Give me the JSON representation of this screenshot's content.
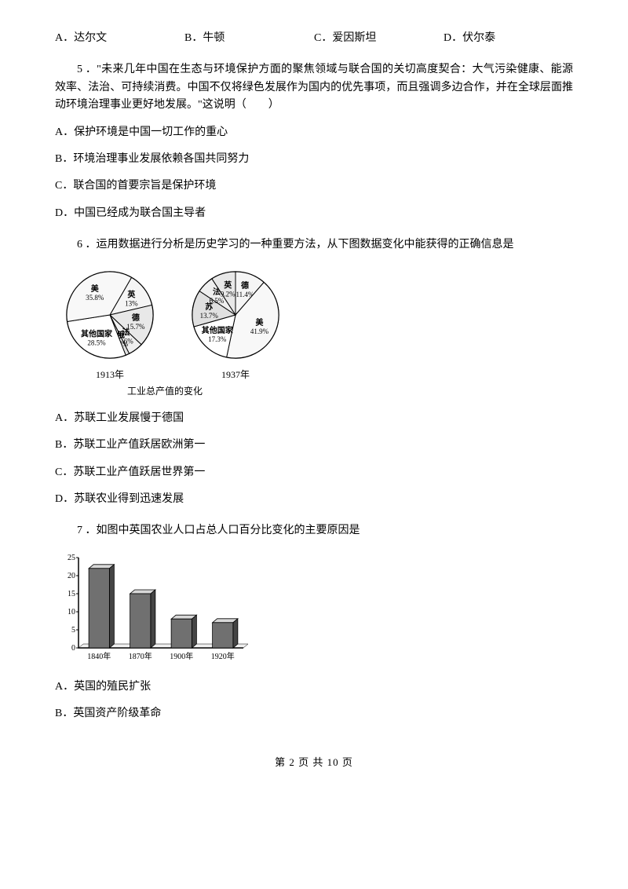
{
  "q4": {
    "options": {
      "A": "A．达尔文",
      "B": "B．牛顿",
      "C": "C．爱因斯坦",
      "D": "D．伏尔泰"
    }
  },
  "q5": {
    "text": "5 ．\"未来几年中国在生态与环境保护方面的聚焦领域与联合国的关切高度契合：大气污染健康、能源效率、法治、可持续消费。中国不仅将绿色发展作为国内的优先事项，而且强调多边合作，并在全球层面推动环境治理事业更好地发展。\"这说明（　　）",
    "A": "A．保护环境是中国一切工作的重心",
    "B": "B．环境治理事业发展依赖各国共同努力",
    "C": "C．联合国的首要宗旨是保护环境",
    "D": "D．中国已经成为联合国主导者"
  },
  "q6": {
    "text": "6 ．运用数据进行分析是历史学习的一种重要方法，从下图数据变化中能获得的正确信息是",
    "chart": {
      "title": "工业总产值的变化",
      "left": {
        "year": "1913年",
        "slices": [
          {
            "label": "英",
            "pct": 13,
            "color": "#f5f5f5"
          },
          {
            "label": "德",
            "pct": 15.7,
            "color": "#e8e8e8"
          },
          {
            "label": "法",
            "pct": 5.6,
            "color": "#efefef"
          },
          {
            "label": "俄",
            "pct": 1.4,
            "color": "#e0e0e0"
          },
          {
            "label": "其他国家",
            "pct": 28.5,
            "color": "#ffffff"
          },
          {
            "label": "美",
            "pct": 35.8,
            "color": "#f8f8f8"
          }
        ]
      },
      "right": {
        "year": "1937年",
        "slices": [
          {
            "label": "德",
            "pct": 11.4,
            "color": "#f5f5f5"
          },
          {
            "label": "美",
            "pct": 41.9,
            "color": "#f8f8f8"
          },
          {
            "label": "其他国家",
            "pct": 17.3,
            "color": "#ffffff"
          },
          {
            "label": "苏",
            "pct": 13.7,
            "color": "#e0e0e0"
          },
          {
            "label": "法",
            "pct": 6.5,
            "color": "#efefef"
          },
          {
            "label": "英",
            "pct": 9.2,
            "color": "#e8e8e8"
          }
        ]
      },
      "border_color": "#000000",
      "font_size": 10
    },
    "A": "A．苏联工业发展慢于德国",
    "B": "B．苏联工业产值跃居欧洲第一",
    "C": "C．苏联工业产值跃居世界第一",
    "D": "D．苏联农业得到迅速发展"
  },
  "q7": {
    "text": "7 ．如图中英国农业人口占总人口百分比变化的主要原因是",
    "chart": {
      "type": "bar",
      "categories": [
        "1840年",
        "1870年",
        "1900年",
        "1920年"
      ],
      "values": [
        22,
        15,
        8,
        7
      ],
      "ylim": [
        0,
        25
      ],
      "ytick_step": 5,
      "bar_fill_top": "#d8d8d8",
      "bar_fill_front": "#707070",
      "bar_fill_side": "#454545",
      "axis_color": "#000000",
      "label_fontsize": 10
    },
    "A": "A．英国的殖民扩张",
    "B": "B．英国资产阶级革命"
  },
  "footer": "第 2 页 共 10 页"
}
